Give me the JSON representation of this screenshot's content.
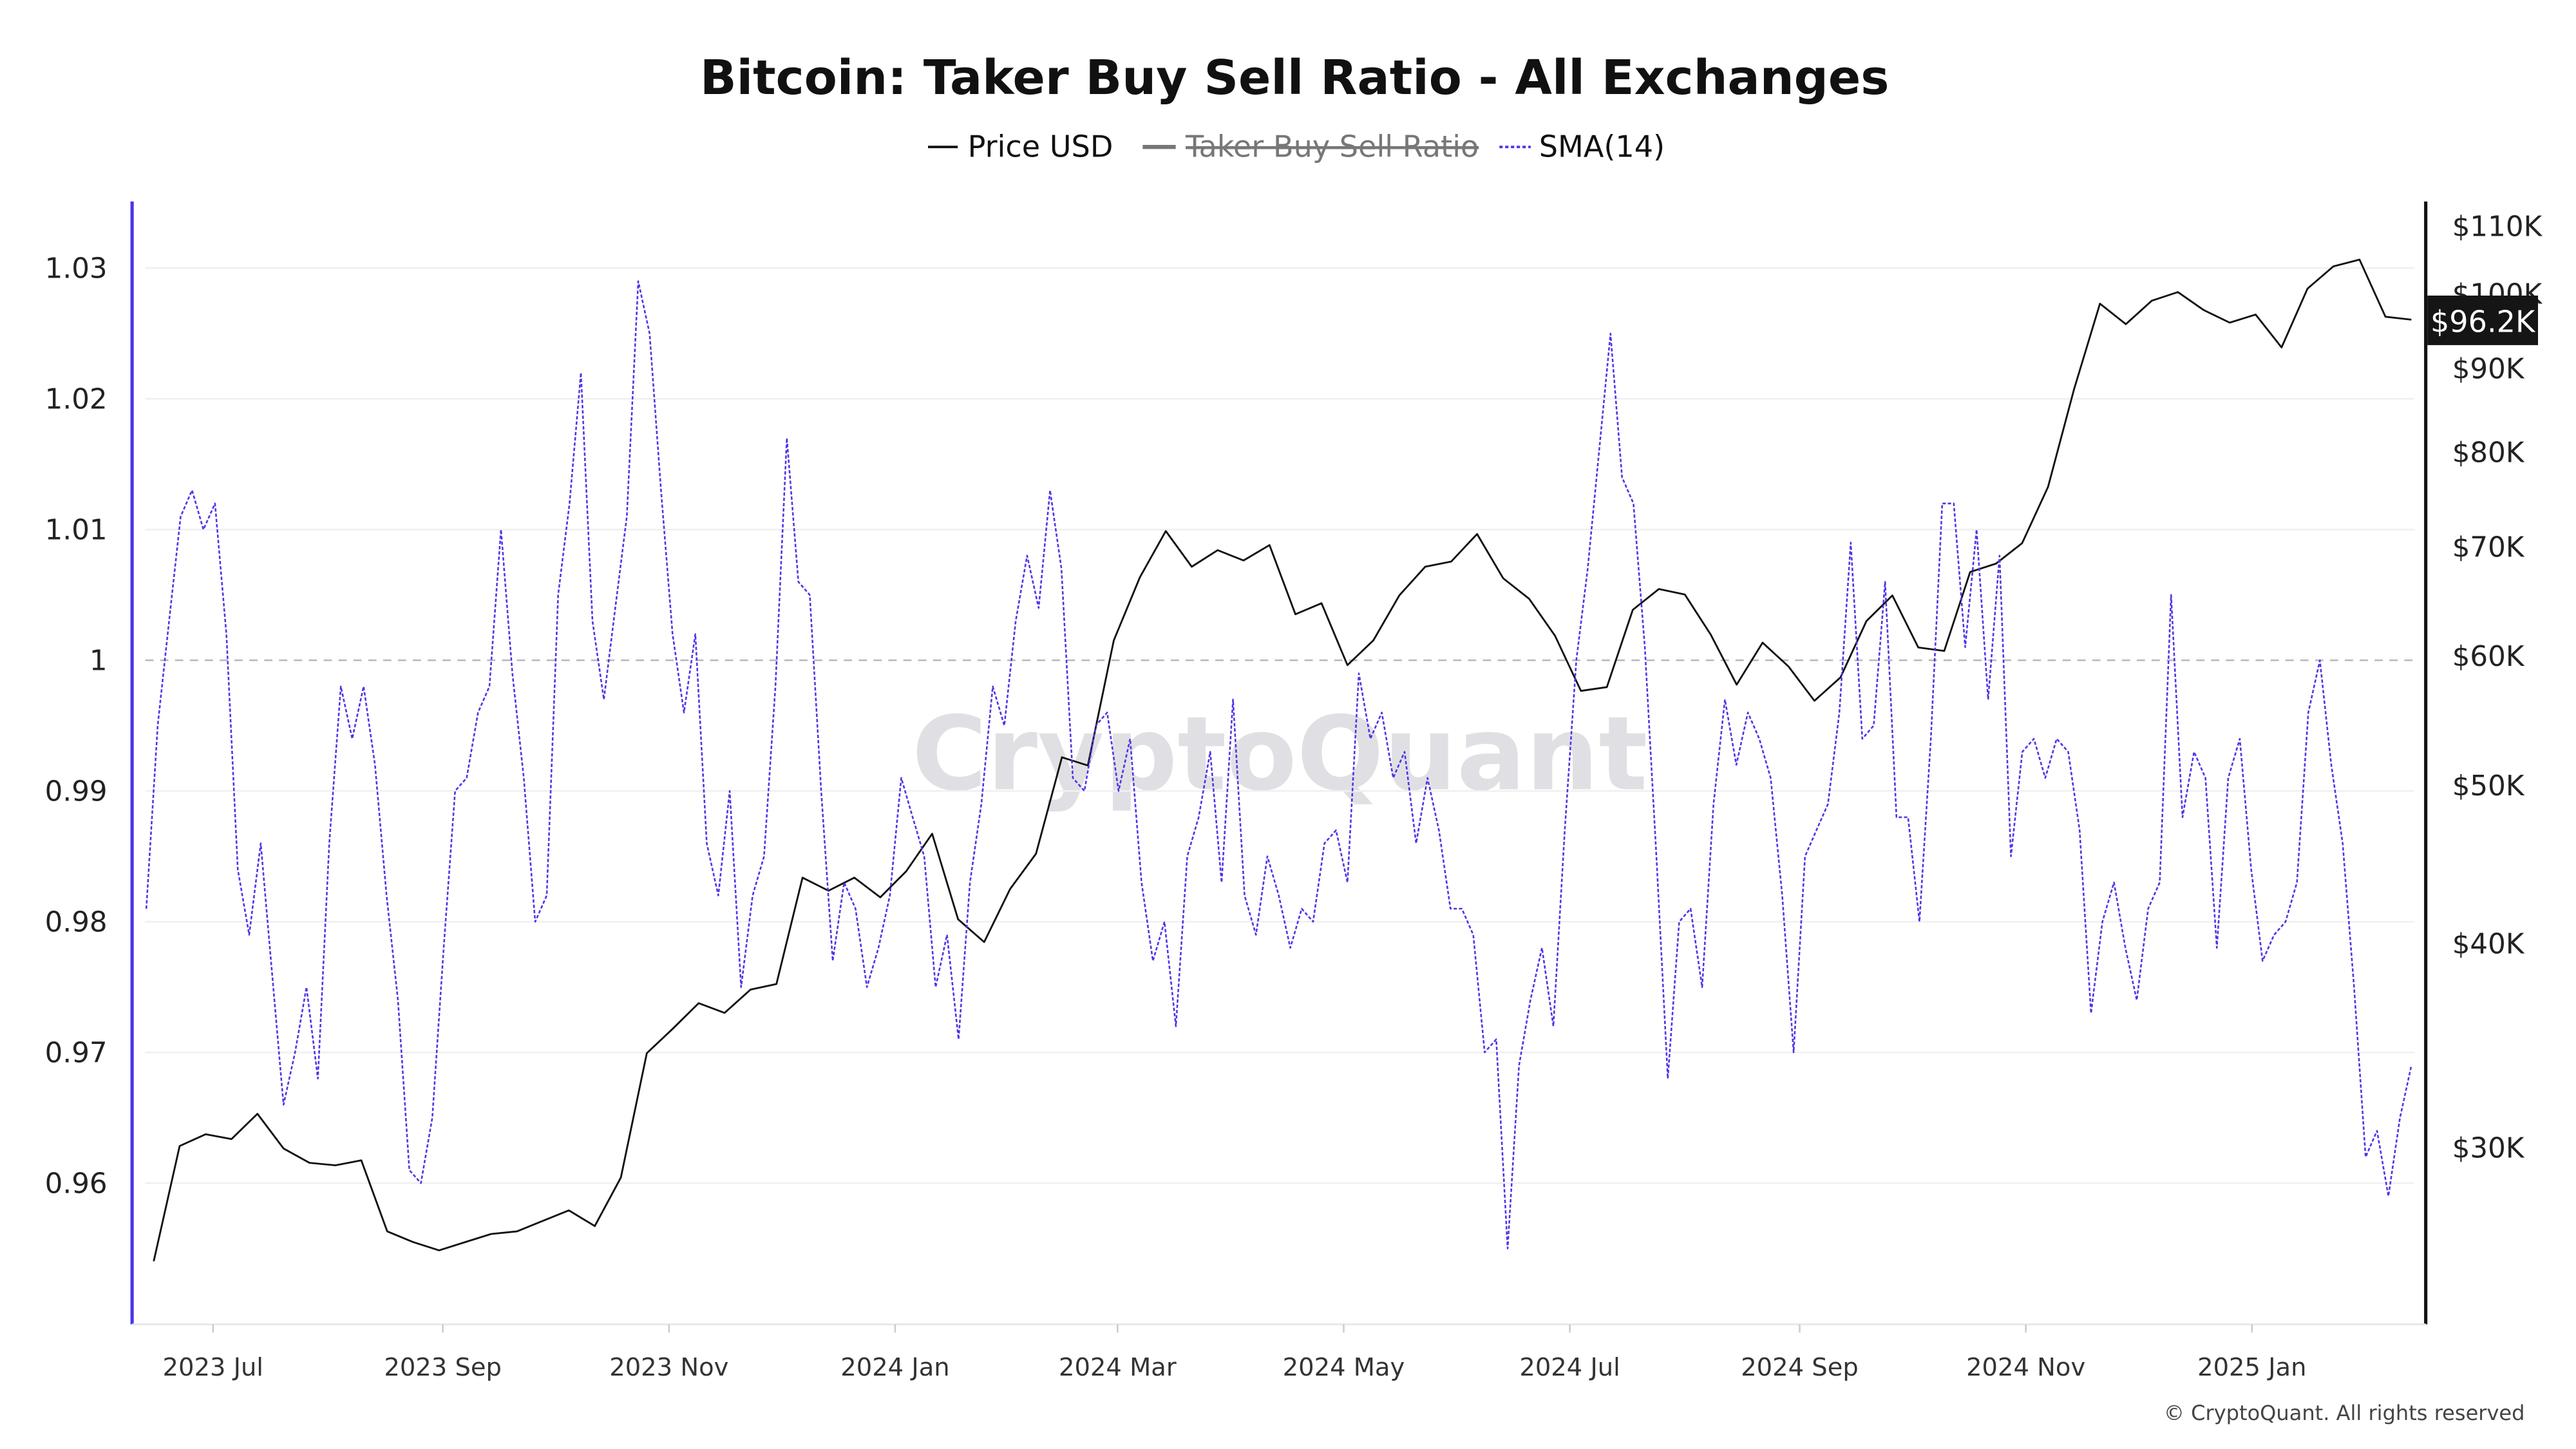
{
  "chart_data": {
    "type": "line",
    "title": "Bitcoin: Taker Buy Sell Ratio - All Exchanges",
    "legend": [
      {
        "label": "Price USD",
        "color": "#111111",
        "style": "solid",
        "visible": true
      },
      {
        "label": "Taker Buy Sell Ratio",
        "color": "#777777",
        "style": "solid",
        "visible": false
      },
      {
        "label": "SMA(14)",
        "color": "#4b35e8",
        "style": "dotted",
        "visible": true
      }
    ],
    "legend_placement": "top-center",
    "x_ticks": [
      "2023 Jul",
      "2023 Sep",
      "2023 Nov",
      "2024 Jan",
      "2024 Mar",
      "2024 May",
      "2024 Jul",
      "2024 Sep",
      "2024 Nov",
      "2025 Jan"
    ],
    "x_tick_dates": [
      "2023-07-01",
      "2023-09-01",
      "2023-11-01",
      "2024-01-01",
      "2024-03-01",
      "2024-05-01",
      "2024-07-01",
      "2024-09-01",
      "2024-11-01",
      "2025-01-01"
    ],
    "x_range": [
      "2023-06-12",
      "2025-02-14"
    ],
    "y_left": {
      "label": "Taker Buy Sell Ratio",
      "ticks": [
        "1.03",
        "1.02",
        "1.01",
        "1",
        "0.99",
        "0.98",
        "0.97",
        "0.96"
      ],
      "tick_values": [
        1.03,
        1.02,
        1.01,
        1.0,
        0.99,
        0.98,
        0.97,
        0.96
      ],
      "range": [
        0.9492,
        1.0351
      ],
      "reference_line": 1.0
    },
    "y_right": {
      "label": "Price USD",
      "scale": "log",
      "ticks": [
        "$110K",
        "$100K",
        "$90K",
        "$80K",
        "$70K",
        "$60K",
        "$50K",
        "$40K",
        "$30K"
      ],
      "tick_values": [
        110000,
        100000,
        90000,
        80000,
        70000,
        60000,
        50000,
        40000,
        30000
      ],
      "range": [
        22000,
        114500
      ]
    },
    "last_price_label": "$96.2K",
    "series": [
      {
        "name": "Price USD",
        "axis": "right",
        "start": "2023-06-15",
        "end": "2025-02-13",
        "values": [
          25500,
          30000,
          30500,
          30300,
          31400,
          29900,
          29300,
          29200,
          29400,
          26600,
          26200,
          25900,
          26200,
          26500,
          26600,
          27000,
          27400,
          26800,
          28700,
          34200,
          35400,
          36700,
          36200,
          37400,
          37700,
          43800,
          43000,
          43800,
          42600,
          44200,
          46600,
          41300,
          40000,
          43100,
          45300,
          51900,
          51300,
          61200,
          66900,
          71400,
          67900,
          69500,
          68500,
          70000,
          63500,
          64500,
          59100,
          61200,
          65200,
          67900,
          68400,
          71100,
          66800,
          64900,
          61600,
          57000,
          57300,
          63900,
          65800,
          65300,
          61700,
          57500,
          61000,
          59000,
          56200,
          58100,
          62900,
          65200,
          60600,
          60300,
          67400,
          68200,
          70200,
          76000,
          87200,
          98400,
          95600,
          98800,
          100000,
          97500,
          95800,
          96900,
          92500,
          100500,
          103700,
          104700,
          96600,
          96200
        ]
      },
      {
        "name": "SMA(14)",
        "axis": "left",
        "start": "2023-06-13",
        "end": "2025-02-13",
        "values": [
          0.981,
          0.995,
          1.003,
          1.011,
          1.013,
          1.01,
          1.012,
          1.002,
          0.984,
          0.979,
          0.986,
          0.976,
          0.966,
          0.97,
          0.975,
          0.968,
          0.986,
          0.998,
          0.994,
          0.998,
          0.992,
          0.982,
          0.974,
          0.961,
          0.96,
          0.965,
          0.978,
          0.99,
          0.991,
          0.996,
          0.998,
          1.01,
          0.999,
          0.991,
          0.98,
          0.982,
          1.005,
          1.012,
          1.022,
          1.003,
          0.997,
          1.004,
          1.011,
          1.029,
          1.025,
          1.013,
          1.002,
          0.996,
          1.002,
          0.986,
          0.982,
          0.99,
          0.975,
          0.982,
          0.985,
          0.998,
          1.017,
          1.006,
          1.005,
          0.99,
          0.977,
          0.983,
          0.981,
          0.975,
          0.978,
          0.982,
          0.991,
          0.988,
          0.985,
          0.975,
          0.979,
          0.971,
          0.983,
          0.989,
          0.998,
          0.995,
          1.003,
          1.008,
          1.004,
          1.013,
          1.007,
          0.991,
          0.99,
          0.995,
          0.996,
          0.99,
          0.994,
          0.983,
          0.977,
          0.98,
          0.972,
          0.985,
          0.988,
          0.993,
          0.983,
          0.997,
          0.982,
          0.979,
          0.985,
          0.982,
          0.978,
          0.981,
          0.98,
          0.986,
          0.987,
          0.983,
          0.999,
          0.994,
          0.996,
          0.991,
          0.993,
          0.986,
          0.991,
          0.987,
          0.981,
          0.981,
          0.979,
          0.97,
          0.971,
          0.955,
          0.969,
          0.974,
          0.978,
          0.972,
          0.987,
          1.0,
          1.007,
          1.016,
          1.025,
          1.014,
          1.012,
          1.001,
          0.985,
          0.968,
          0.98,
          0.981,
          0.975,
          0.989,
          0.997,
          0.992,
          0.996,
          0.994,
          0.991,
          0.982,
          0.97,
          0.985,
          0.987,
          0.989,
          0.996,
          1.009,
          0.994,
          0.995,
          1.006,
          0.988,
          0.988,
          0.98,
          0.994,
          1.012,
          1.012,
          1.001,
          1.01,
          0.997,
          1.008,
          0.985,
          0.993,
          0.994,
          0.991,
          0.994,
          0.993,
          0.987,
          0.973,
          0.98,
          0.983,
          0.978,
          0.974,
          0.981,
          0.983,
          1.005,
          0.988,
          0.993,
          0.991,
          0.978,
          0.991,
          0.994,
          0.984,
          0.977,
          0.979,
          0.98,
          0.983,
          0.996,
          1.0,
          0.992,
          0.986,
          0.975,
          0.962,
          0.964,
          0.959,
          0.965,
          0.969
        ]
      }
    ],
    "watermark": "CryptoQuant",
    "copyright": "© CryptoQuant. All rights reserved"
  }
}
